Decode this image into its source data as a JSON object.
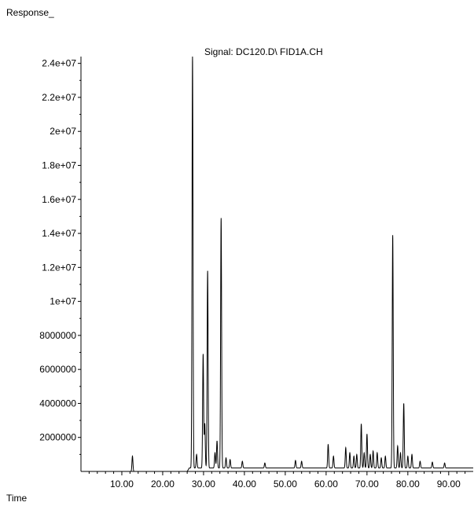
{
  "chart_data": {
    "type": "line",
    "title": "Signal: DC120.D\\ FID1A.CH",
    "ylabel": "Response_",
    "xlabel": "Time",
    "xlim": [
      0,
      96
    ],
    "ylim": [
      0,
      24400000
    ],
    "x_ticks": [
      10,
      20,
      30,
      40,
      50,
      60,
      70,
      80,
      90
    ],
    "x_tick_labels": [
      "10.00",
      "20.00",
      "30.00",
      "40.00",
      "50.00",
      "60.00",
      "70.00",
      "80.00",
      "90.00"
    ],
    "y_ticks": [
      2000000,
      4000000,
      6000000,
      8000000,
      10000000,
      12000000,
      14000000,
      16000000,
      18000000,
      20000000,
      22000000,
      24000000
    ],
    "y_tick_labels": [
      "2000000",
      "4000000",
      "6000000",
      "8000000",
      "1e+07",
      "1.2e+07",
      "1.4e+07",
      "1.6e+07",
      "1.8e+07",
      "2e+07",
      "2.2e+07",
      "2.4e+07"
    ],
    "grid": false,
    "baseline": 200000,
    "peaks": [
      {
        "x": 12.6,
        "y": 900000
      },
      {
        "x": 27.3,
        "y": 24200000
      },
      {
        "x": 28.3,
        "y": 800000
      },
      {
        "x": 29.9,
        "y": 6700000
      },
      {
        "x": 30.3,
        "y": 2600000
      },
      {
        "x": 31.0,
        "y": 11600000
      },
      {
        "x": 32.8,
        "y": 900000
      },
      {
        "x": 33.3,
        "y": 1600000
      },
      {
        "x": 34.3,
        "y": 14700000
      },
      {
        "x": 35.5,
        "y": 600000
      },
      {
        "x": 36.5,
        "y": 500000
      },
      {
        "x": 39.5,
        "y": 400000
      },
      {
        "x": 45.0,
        "y": 300000
      },
      {
        "x": 52.5,
        "y": 450000
      },
      {
        "x": 54.0,
        "y": 400000
      },
      {
        "x": 60.5,
        "y": 1400000
      },
      {
        "x": 61.8,
        "y": 700000
      },
      {
        "x": 64.8,
        "y": 1200000
      },
      {
        "x": 65.8,
        "y": 900000
      },
      {
        "x": 66.8,
        "y": 700000
      },
      {
        "x": 67.5,
        "y": 800000
      },
      {
        "x": 68.6,
        "y": 2600000
      },
      {
        "x": 69.3,
        "y": 900000
      },
      {
        "x": 70.0,
        "y": 2000000
      },
      {
        "x": 70.8,
        "y": 800000
      },
      {
        "x": 71.5,
        "y": 1000000
      },
      {
        "x": 72.5,
        "y": 900000
      },
      {
        "x": 73.5,
        "y": 600000
      },
      {
        "x": 74.5,
        "y": 700000
      },
      {
        "x": 76.3,
        "y": 13700000
      },
      {
        "x": 77.5,
        "y": 1300000
      },
      {
        "x": 78.2,
        "y": 900000
      },
      {
        "x": 79.0,
        "y": 3800000
      },
      {
        "x": 80.0,
        "y": 700000
      },
      {
        "x": 81.0,
        "y": 800000
      },
      {
        "x": 83.0,
        "y": 400000
      },
      {
        "x": 86.0,
        "y": 350000
      },
      {
        "x": 89.0,
        "y": 300000
      }
    ]
  }
}
